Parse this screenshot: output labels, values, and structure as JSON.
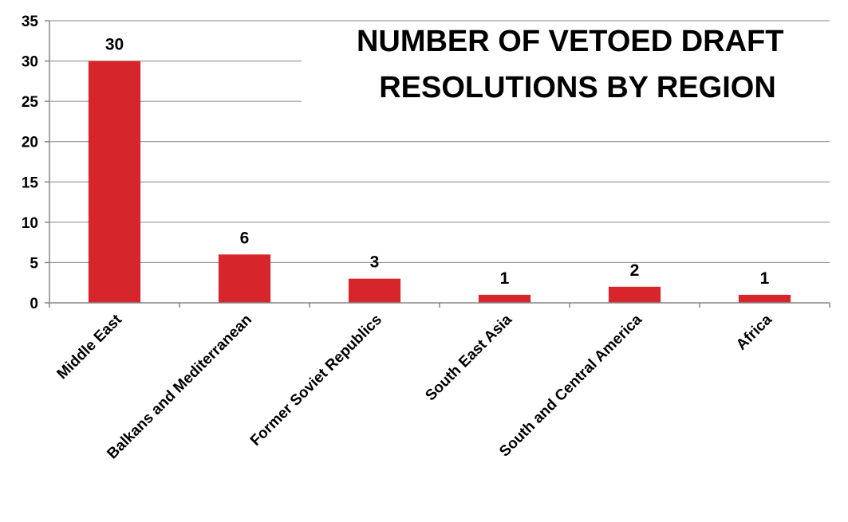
{
  "chart_data": {
    "type": "bar",
    "title_lines": [
      "NUMBER OF VETOED DRAFT",
      "RESOLUTIONS BY REGION"
    ],
    "categories": [
      "Middle East",
      "Balkans and Mediterranean",
      "Former Soviet Republics",
      "South East Asia",
      "South and Central America",
      "Africa"
    ],
    "values": [
      30,
      6,
      3,
      1,
      2,
      1
    ],
    "data_labels": [
      "30",
      "6",
      "3",
      "1",
      "2",
      "1"
    ],
    "ylim": [
      0,
      35
    ],
    "yticks": [
      0,
      5,
      10,
      15,
      20,
      25,
      30,
      35
    ],
    "xlabel": "",
    "ylabel": "",
    "grid": true,
    "legend": "none",
    "bar_color": "#d7262b"
  }
}
